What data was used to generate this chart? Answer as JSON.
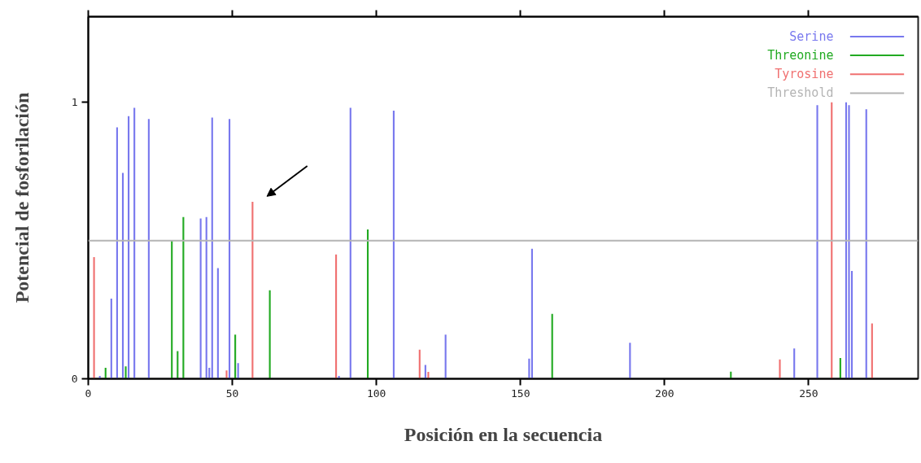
{
  "chart_data": {
    "type": "bar",
    "xlabel": "Posición en la secuencia",
    "ylabel": "Potencial de fosforilación",
    "xlim": [
      0,
      288
    ],
    "ylim": [
      0,
      1.31
    ],
    "xticks": [
      0,
      50,
      100,
      150,
      200,
      250
    ],
    "yticks": [
      0,
      1
    ],
    "tick_labels": "xy",
    "grid": false,
    "legend": "top right",
    "series": [
      {
        "name": "Serine",
        "color": "#7878ee",
        "x": [
          4,
          8,
          10,
          12,
          14,
          16,
          21,
          39,
          41,
          42,
          43,
          45,
          49,
          52,
          73,
          87,
          91,
          106,
          117,
          124,
          153,
          154,
          188,
          245,
          253,
          263,
          264,
          265,
          270
        ],
        "values": [
          0.01,
          0.29,
          0.91,
          0.745,
          0.95,
          0.98,
          0.94,
          0.58,
          0.585,
          0.04,
          0.945,
          0.4,
          0.94,
          0.057,
          null,
          0.01,
          0.98,
          0.97,
          0.05,
          0.16,
          0.073,
          0.47,
          0.13,
          0.11,
          0.99,
          1.0,
          0.99,
          0.39,
          0.975
        ]
      },
      {
        "name": "Threonine",
        "color": "#22aa22",
        "x": [
          6,
          13,
          29,
          31,
          33,
          51,
          63,
          97,
          161,
          223,
          261
        ],
        "values": [
          0.04,
          0.045,
          0.5,
          0.1,
          0.585,
          0.16,
          0.32,
          0.54,
          0.235,
          0.026,
          0.075
        ]
      },
      {
        "name": "Tyrosine",
        "color": "#f07070",
        "x": [
          2,
          48,
          57,
          86,
          115,
          118,
          240,
          258,
          272
        ],
        "values": [
          0.44,
          0.03,
          0.64,
          0.45,
          0.105,
          0.025,
          0.07,
          1.0,
          0.2
        ]
      }
    ],
    "ref_lines": [
      {
        "axis": "y",
        "value": 0.5,
        "label": "Threshold",
        "color": "#b4b4b4"
      }
    ]
  }
}
